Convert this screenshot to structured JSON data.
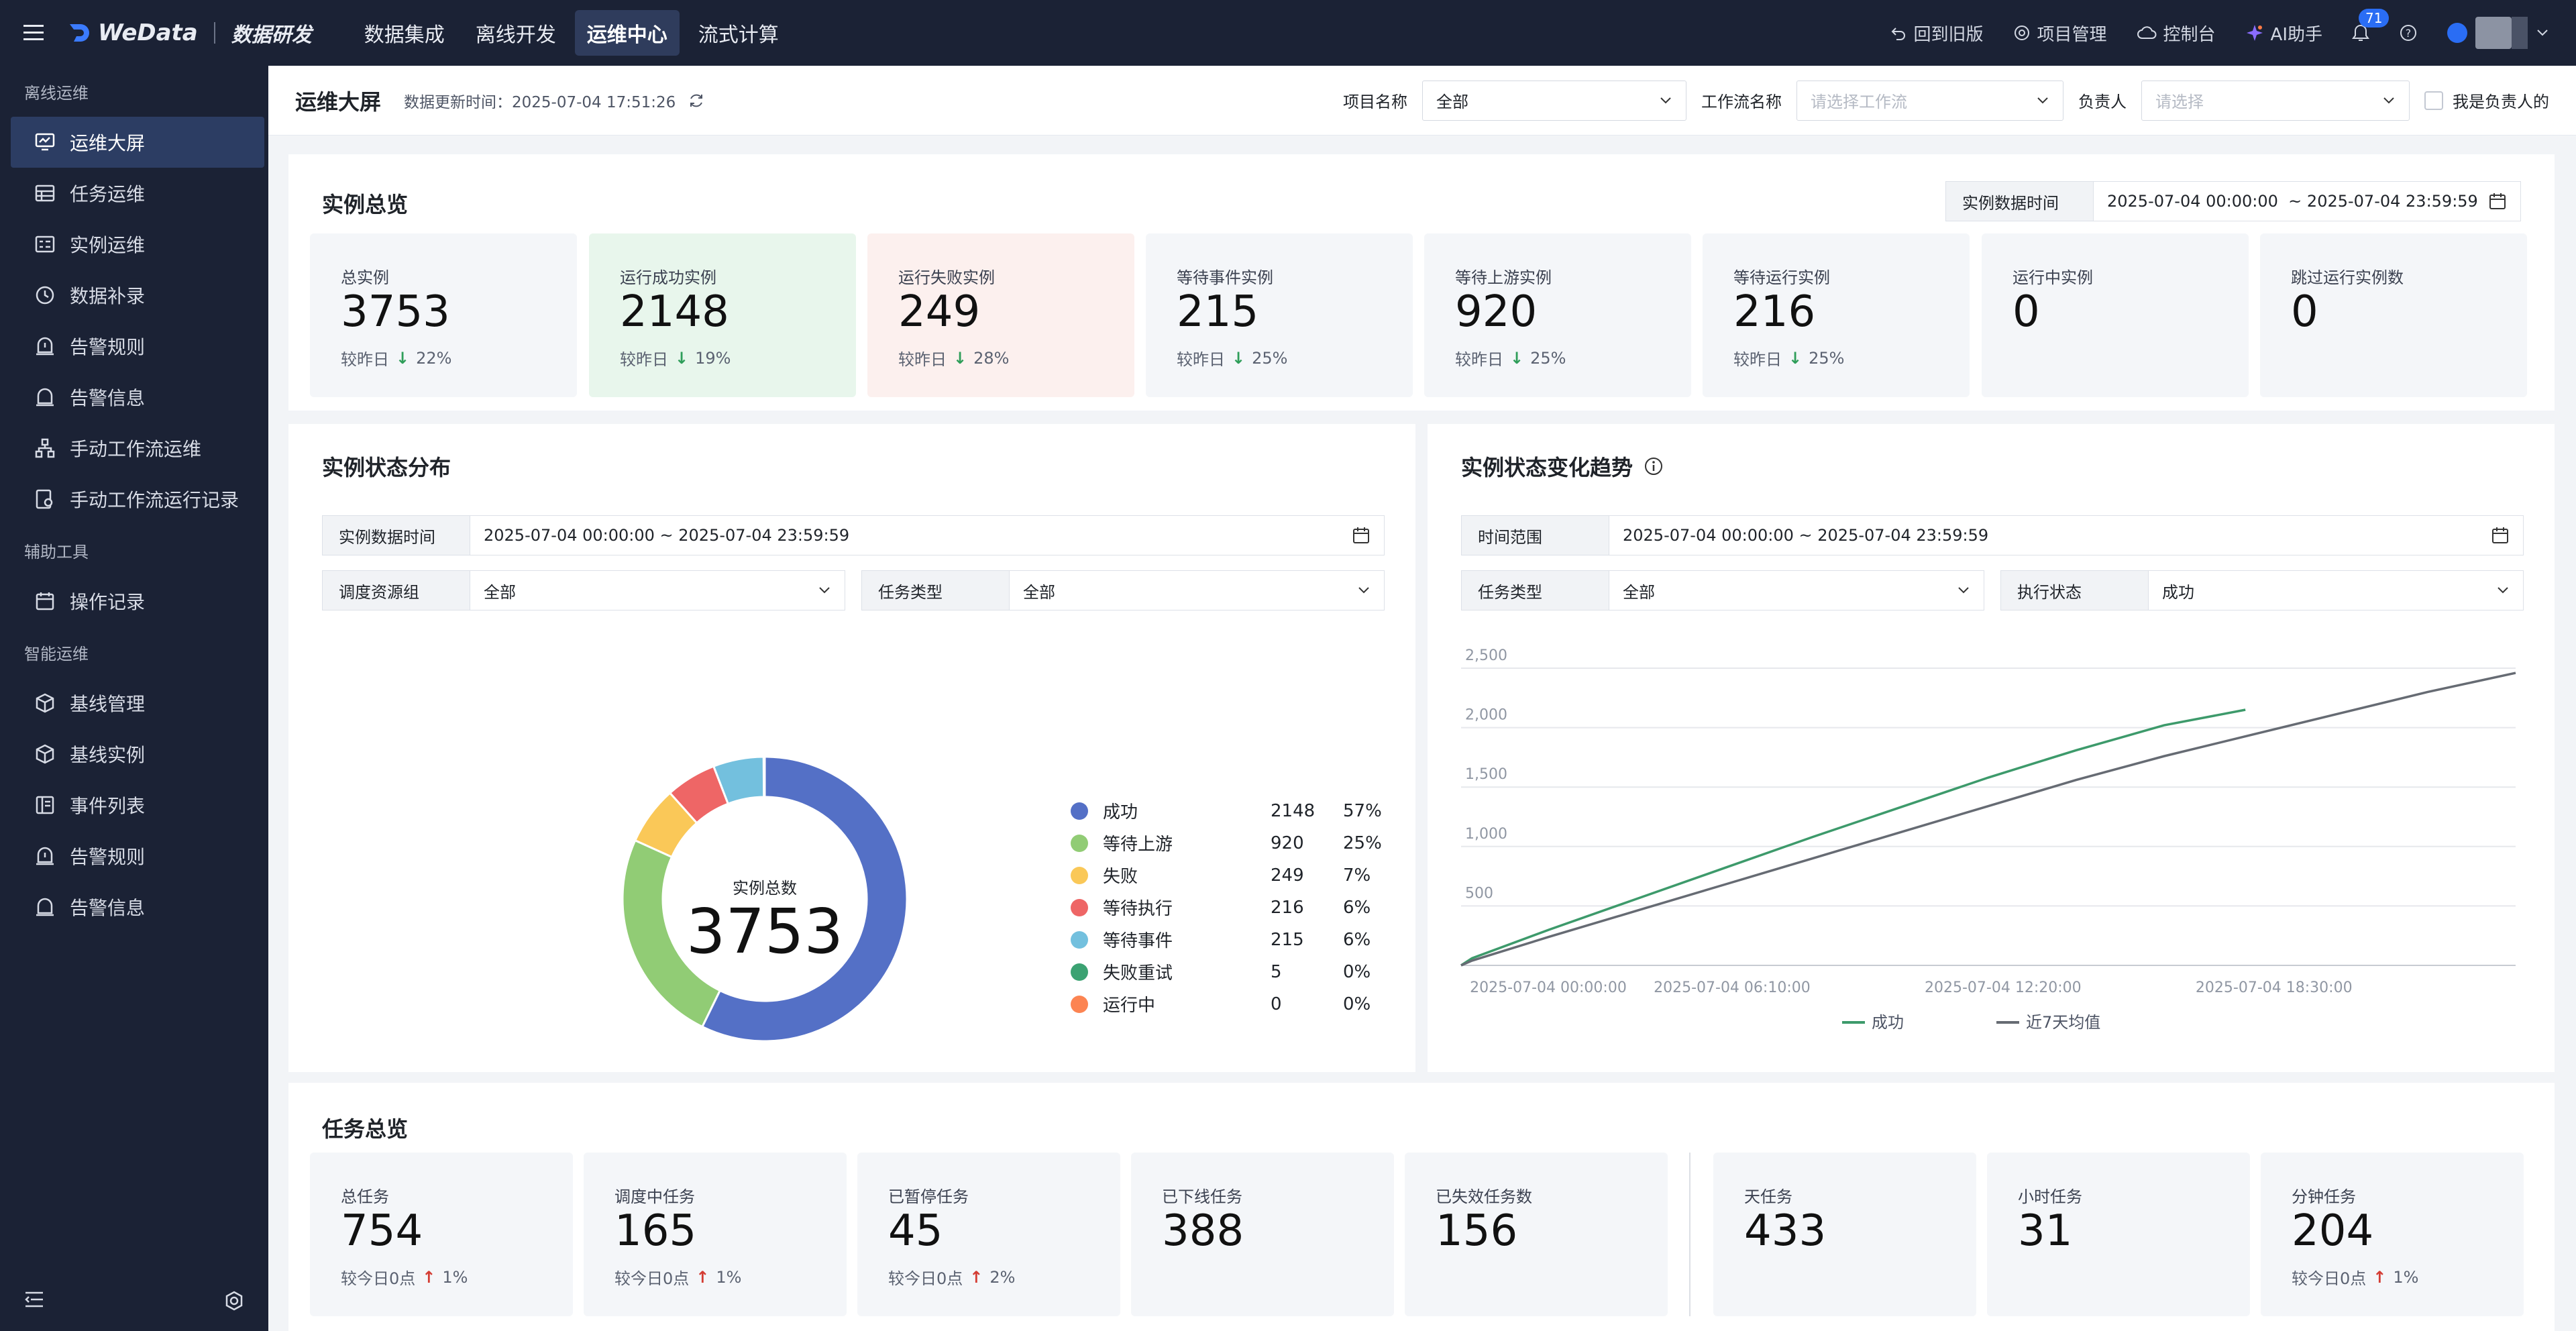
{
  "topbar": {
    "brand": "WeData",
    "brand_sub": "数据研发",
    "nav": [
      "数据集成",
      "离线开发",
      "运维中心",
      "流式计算"
    ],
    "active_nav": 2,
    "actions": {
      "old_version": "回到旧版",
      "project_mgmt": "项目管理",
      "console": "控制台",
      "ai": "AI助手"
    },
    "notification_count": "71"
  },
  "sidebar": {
    "group1": "离线运维",
    "items1": [
      "运维大屏",
      "任务运维",
      "实例运维",
      "数据补录",
      "告警规则",
      "告警信息",
      "手动工作流运维",
      "手动工作流运行记录"
    ],
    "group2": "辅助工具",
    "items2": [
      "操作记录"
    ],
    "group3": "智能运维",
    "items3": [
      "基线管理",
      "基线实例",
      "事件列表",
      "告警规则",
      "告警信息"
    ]
  },
  "pagebar": {
    "title": "运维大屏",
    "updated_label": "数据更新时间：",
    "updated_value": "2025-07-04 17:51:26",
    "project_label": "项目名称",
    "project_value": "全部",
    "workflow_label": "工作流名称",
    "workflow_placeholder": "请选择工作流",
    "owner_label": "负责人",
    "owner_placeholder": "请选择",
    "mine_label": "我是负责人的"
  },
  "overview": {
    "title": "实例总览",
    "time_label": "实例数据时间",
    "time_start": "2025-07-04 00:00:00",
    "time_sep": "~",
    "time_end": "2025-07-04 23:59:59",
    "compare_label": "较昨日",
    "stats": [
      {
        "label": "总实例",
        "value": "3753",
        "change": "22%",
        "trend": "down",
        "bg": "#f4f6f9"
      },
      {
        "label": "运行成功实例",
        "value": "2148",
        "change": "19%",
        "trend": "down",
        "bg": "#e8f6ec"
      },
      {
        "label": "运行失败实例",
        "value": "249",
        "change": "28%",
        "trend": "down",
        "bg": "#fcf0ee"
      },
      {
        "label": "等待事件实例",
        "value": "215",
        "change": "25%",
        "trend": "down",
        "bg": "#f4f6f9"
      },
      {
        "label": "等待上游实例",
        "value": "920",
        "change": "25%",
        "trend": "down",
        "bg": "#f4f6f9"
      },
      {
        "label": "等待运行实例",
        "value": "216",
        "change": "25%",
        "trend": "down",
        "bg": "#f4f6f9"
      },
      {
        "label": "运行中实例",
        "value": "0",
        "change": "",
        "trend": "",
        "bg": "#f4f6f9"
      },
      {
        "label": "跳过运行实例数",
        "value": "0",
        "change": "",
        "trend": "",
        "bg": "#f4f6f9"
      }
    ]
  },
  "distribution": {
    "title": "实例状态分布",
    "time_label": "实例数据时间",
    "time_value": "2025-07-04 00:00:00  ~ 2025-07-04 23:59:59",
    "group_label": "调度资源组",
    "group_value": "全部",
    "type_label": "任务类型",
    "type_value": "全部",
    "center_label": "实例总数",
    "center_value": "3753",
    "legend": [
      {
        "name": "成功",
        "value": "2148",
        "pct": "57%",
        "color": "#5470c6"
      },
      {
        "name": "等待上游",
        "value": "920",
        "pct": "25%",
        "color": "#91cc75"
      },
      {
        "name": "失败",
        "value": "249",
        "pct": "7%",
        "color": "#fac858"
      },
      {
        "name": "等待执行",
        "value": "216",
        "pct": "6%",
        "color": "#ee6666"
      },
      {
        "name": "等待事件",
        "value": "215",
        "pct": "6%",
        "color": "#73c0de"
      },
      {
        "name": "失败重试",
        "value": "5",
        "pct": "0%",
        "color": "#3ba272"
      },
      {
        "name": "运行中",
        "value": "0",
        "pct": "0%",
        "color": "#fc8452"
      }
    ]
  },
  "trend": {
    "title": "实例状态变化趋势",
    "range_label": "时间范围",
    "range_value": "2025-07-04 00:00:00  ~ 2025-07-04 23:59:59",
    "type_label": "任务类型",
    "type_value": "全部",
    "status_label": "执行状态",
    "status_value": "成功"
  },
  "chart_data": {
    "type": "line",
    "title": "",
    "xlabel": "",
    "ylabel": "",
    "x_ticks": [
      "2025-07-04 00:00:00",
      "2025-07-04 06:10:00",
      "2025-07-04 12:20:00",
      "2025-07-04 18:30:00"
    ],
    "x_range_hours": [
      0,
      24
    ],
    "ylim": [
      0,
      2500
    ],
    "y_ticks": [
      500,
      1000,
      1500,
      2000,
      2500
    ],
    "legend_position": "bottom",
    "grid": true,
    "series": [
      {
        "name": "成功",
        "color": "#3d9a6b",
        "x_hours": [
          0,
          0.25,
          2,
          4,
          6,
          8,
          10,
          12,
          14,
          16,
          17.85
        ],
        "values": [
          0,
          60,
          300,
          560,
          820,
          1080,
          1330,
          1580,
          1810,
          2020,
          2150
        ]
      },
      {
        "name": "近7天均值",
        "color": "#666b73",
        "x_hours": [
          0,
          0.25,
          2,
          4,
          6,
          8,
          10,
          12,
          14,
          16,
          18,
          20,
          22,
          24
        ],
        "values": [
          0,
          40,
          240,
          460,
          680,
          900,
          1120,
          1340,
          1560,
          1760,
          1940,
          2120,
          2300,
          2460
        ]
      }
    ]
  },
  "tasks": {
    "title": "任务总览",
    "compare_label": "较今日0点",
    "stats": [
      {
        "label": "总任务",
        "value": "754",
        "change": "1%",
        "trend": "up"
      },
      {
        "label": "调度中任务",
        "value": "165",
        "change": "1%",
        "trend": "up"
      },
      {
        "label": "已暂停任务",
        "value": "45",
        "change": "2%",
        "trend": "up"
      },
      {
        "label": "已下线任务",
        "value": "388",
        "change": "",
        "trend": ""
      },
      {
        "label": "已失效任务数",
        "value": "156",
        "change": "",
        "trend": ""
      },
      {
        "label": "天任务",
        "value": "433",
        "change": "",
        "trend": ""
      },
      {
        "label": "小时任务",
        "value": "31",
        "change": "",
        "trend": ""
      },
      {
        "label": "分钟任务",
        "value": "204",
        "change": "1%",
        "trend": "up"
      }
    ]
  }
}
